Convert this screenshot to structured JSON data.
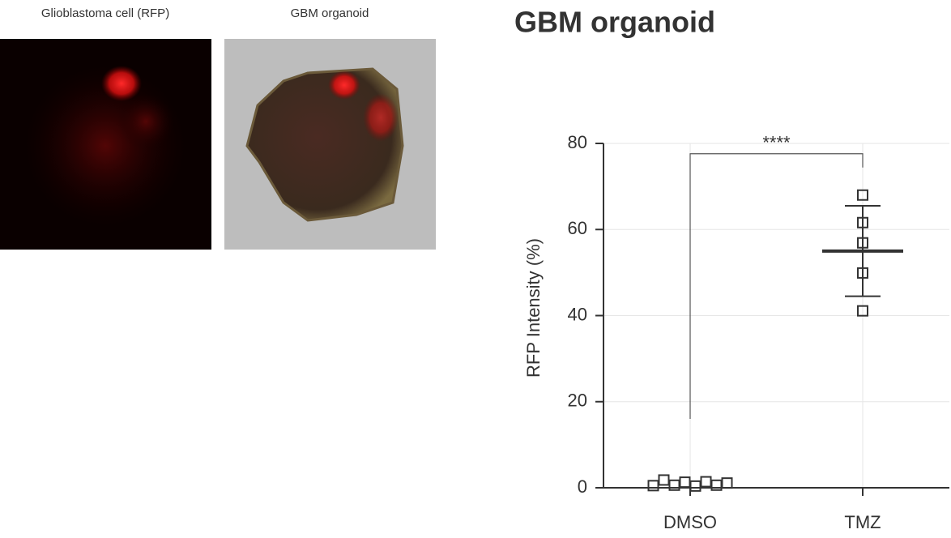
{
  "panels": [
    {
      "label": "Glioblastoma cell (RFP)"
    },
    {
      "label": "GBM organoid"
    }
  ],
  "chart_data": {
    "type": "dot",
    "title": "GBM organoid",
    "ylabel": "RFP Intensity (%)",
    "categories": [
      "DMSO",
      "TMZ"
    ],
    "values": [
      [
        0.5,
        1.8,
        0.6,
        1.3,
        0.4,
        1.4,
        0.6,
        1.1
      ],
      [
        68.0,
        61.6,
        56.9,
        49.9,
        41.1
      ]
    ],
    "means": [
      null,
      55.0
    ],
    "errors": [
      null,
      10.5
    ],
    "significance": {
      "label": "****",
      "y": 77.6,
      "left_end": 16,
      "right_end": 74.4
    },
    "ylim": [
      0,
      80
    ],
    "yticks": [
      0,
      20,
      40,
      60,
      80
    ],
    "grid": true,
    "color": "#333333"
  }
}
